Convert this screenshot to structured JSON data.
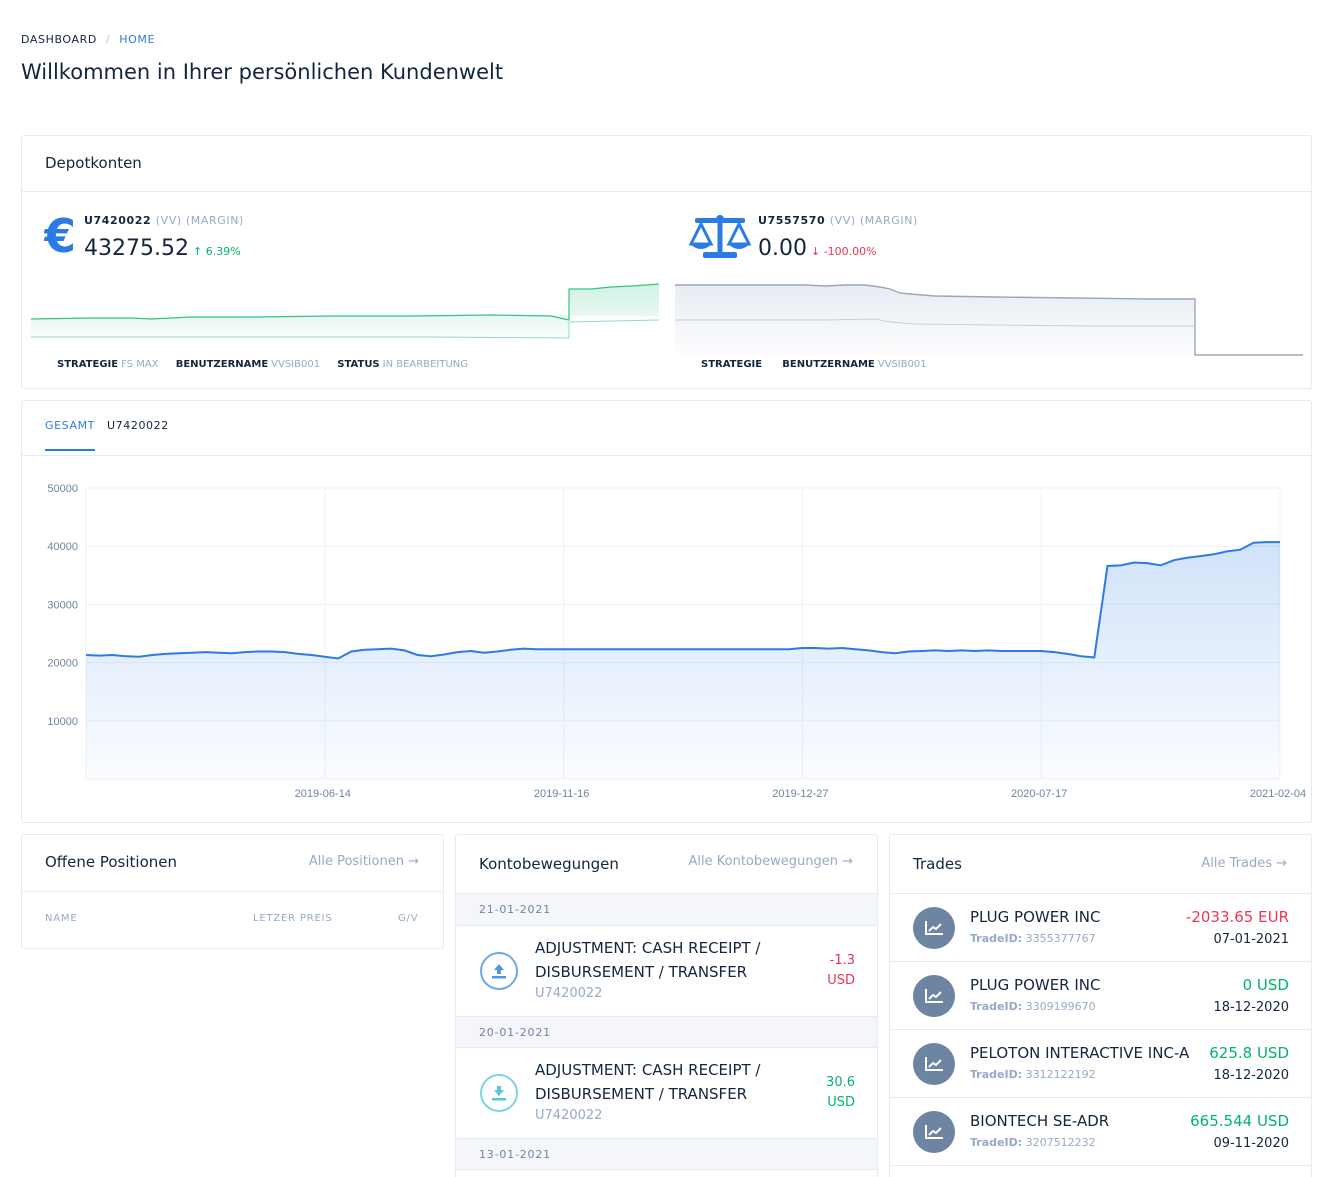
{
  "breadcrumb": {
    "root": "DASHBOARD",
    "separator": "/",
    "current": "HOME"
  },
  "page": {
    "title": "Willkommen in Ihrer persönlichen Kundenwelt"
  },
  "depot": {
    "title": "Depotkonten",
    "accounts": [
      {
        "id": "U7420022",
        "tags": "(VV) (MARGIN)",
        "value": "43275.52",
        "change": "6.39%",
        "direction": "up",
        "meta": [
          {
            "label": "STRATEGIE",
            "value": "FS MAX"
          },
          {
            "label": "BENUTZERNAME",
            "value": "VVSIB001"
          },
          {
            "label": "STATUS",
            "value": "IN BEARBEITUNG"
          }
        ]
      },
      {
        "id": "U7557570",
        "tags": "(VV) (MARGIN)",
        "value": "0.00",
        "change": "-100.00%",
        "direction": "down",
        "meta": [
          {
            "label": "STRATEGIE",
            "value": ""
          },
          {
            "label": "BENUTZERNAME",
            "value": "VVSIB001"
          }
        ]
      }
    ]
  },
  "performance": {
    "tabs": [
      "GESAMT",
      "U7420022"
    ],
    "active_tab": "GESAMT"
  },
  "chart_data": {
    "type": "area",
    "title": "",
    "xlabel": "",
    "ylabel": "",
    "x_ticks": [
      "2019-06-14",
      "2019-11-16",
      "2019-12-27",
      "2020-07-17",
      "2021-02-04"
    ],
    "y_ticks": [
      10000,
      20000,
      30000,
      40000,
      50000
    ],
    "ylim": [
      0,
      50000
    ],
    "grid": true,
    "color": "#2c7be5",
    "series": [
      {
        "name": "GESAMT",
        "values": [
          21300,
          21200,
          21300,
          21100,
          21000,
          21300,
          21500,
          21600,
          21700,
          21800,
          21700,
          21600,
          21800,
          21900,
          21900,
          21800,
          21500,
          21300,
          21000,
          20700,
          21900,
          22200,
          22300,
          22400,
          22100,
          21300,
          21100,
          21400,
          21800,
          22000,
          21700,
          21900,
          22200,
          22400,
          22300,
          22300,
          22300,
          22300,
          22300,
          22300,
          22300,
          22300,
          22300,
          22300,
          22300,
          22300,
          22300,
          22300,
          22300,
          22300,
          22300,
          22300,
          22300,
          22300,
          22500,
          22500,
          22400,
          22500,
          22300,
          22100,
          21800,
          21600,
          21900,
          22000,
          22100,
          22000,
          22100,
          22000,
          22100,
          22000,
          22000,
          22000,
          22000,
          21800,
          21500,
          21100,
          20900,
          36600,
          36700,
          37200,
          37100,
          36700,
          37600,
          38000,
          38300,
          38600,
          39100,
          39400,
          40600,
          40700,
          40700
        ]
      }
    ]
  },
  "positions": {
    "title": "Offene Positionen",
    "link": "Alle Positionen →",
    "columns": [
      "NAME",
      "LETZER PREIS",
      "G/V"
    ]
  },
  "movements": {
    "title": "Kontobewegungen",
    "link": "Alle Kontobewegungen →",
    "groups": [
      {
        "date": "21-01-2021",
        "items": [
          {
            "title": "ADJUSTMENT: CASH RECEIPT / DISBURSEMENT / TRANSFER",
            "account": "U7420022",
            "amount": "-1.3",
            "currency": "USD",
            "direction": "out"
          }
        ]
      },
      {
        "date": "20-01-2021",
        "items": [
          {
            "title": "ADJUSTMENT: CASH RECEIPT / DISBURSEMENT / TRANSFER",
            "account": "U7420022",
            "amount": "30.6",
            "currency": "USD",
            "direction": "in"
          }
        ]
      },
      {
        "date": "13-01-2021",
        "items": []
      }
    ]
  },
  "trades": {
    "title": "Trades",
    "link": "Alle Trades →",
    "id_label": "TradeID:",
    "items": [
      {
        "name": "PLUG POWER INC",
        "trade_id": "3355377767",
        "amount": "-2033.65 EUR",
        "date": "07-01-2021",
        "sign": "neg"
      },
      {
        "name": "PLUG POWER INC",
        "trade_id": "3309199670",
        "amount": "0 USD",
        "date": "18-12-2020",
        "sign": "pos"
      },
      {
        "name": "PELOTON INTERACTIVE INC-A",
        "trade_id": "3312122192",
        "amount": "625.8 USD",
        "date": "18-12-2020",
        "sign": "pos"
      },
      {
        "name": "BIONTECH SE-ADR",
        "trade_id": "3207512232",
        "amount": "665.544 USD",
        "date": "09-11-2020",
        "sign": "pos"
      }
    ]
  },
  "colors": {
    "accent": "#2c7be5",
    "positive": "#00b469",
    "negative": "#e63757",
    "muted": "#95aac9"
  }
}
